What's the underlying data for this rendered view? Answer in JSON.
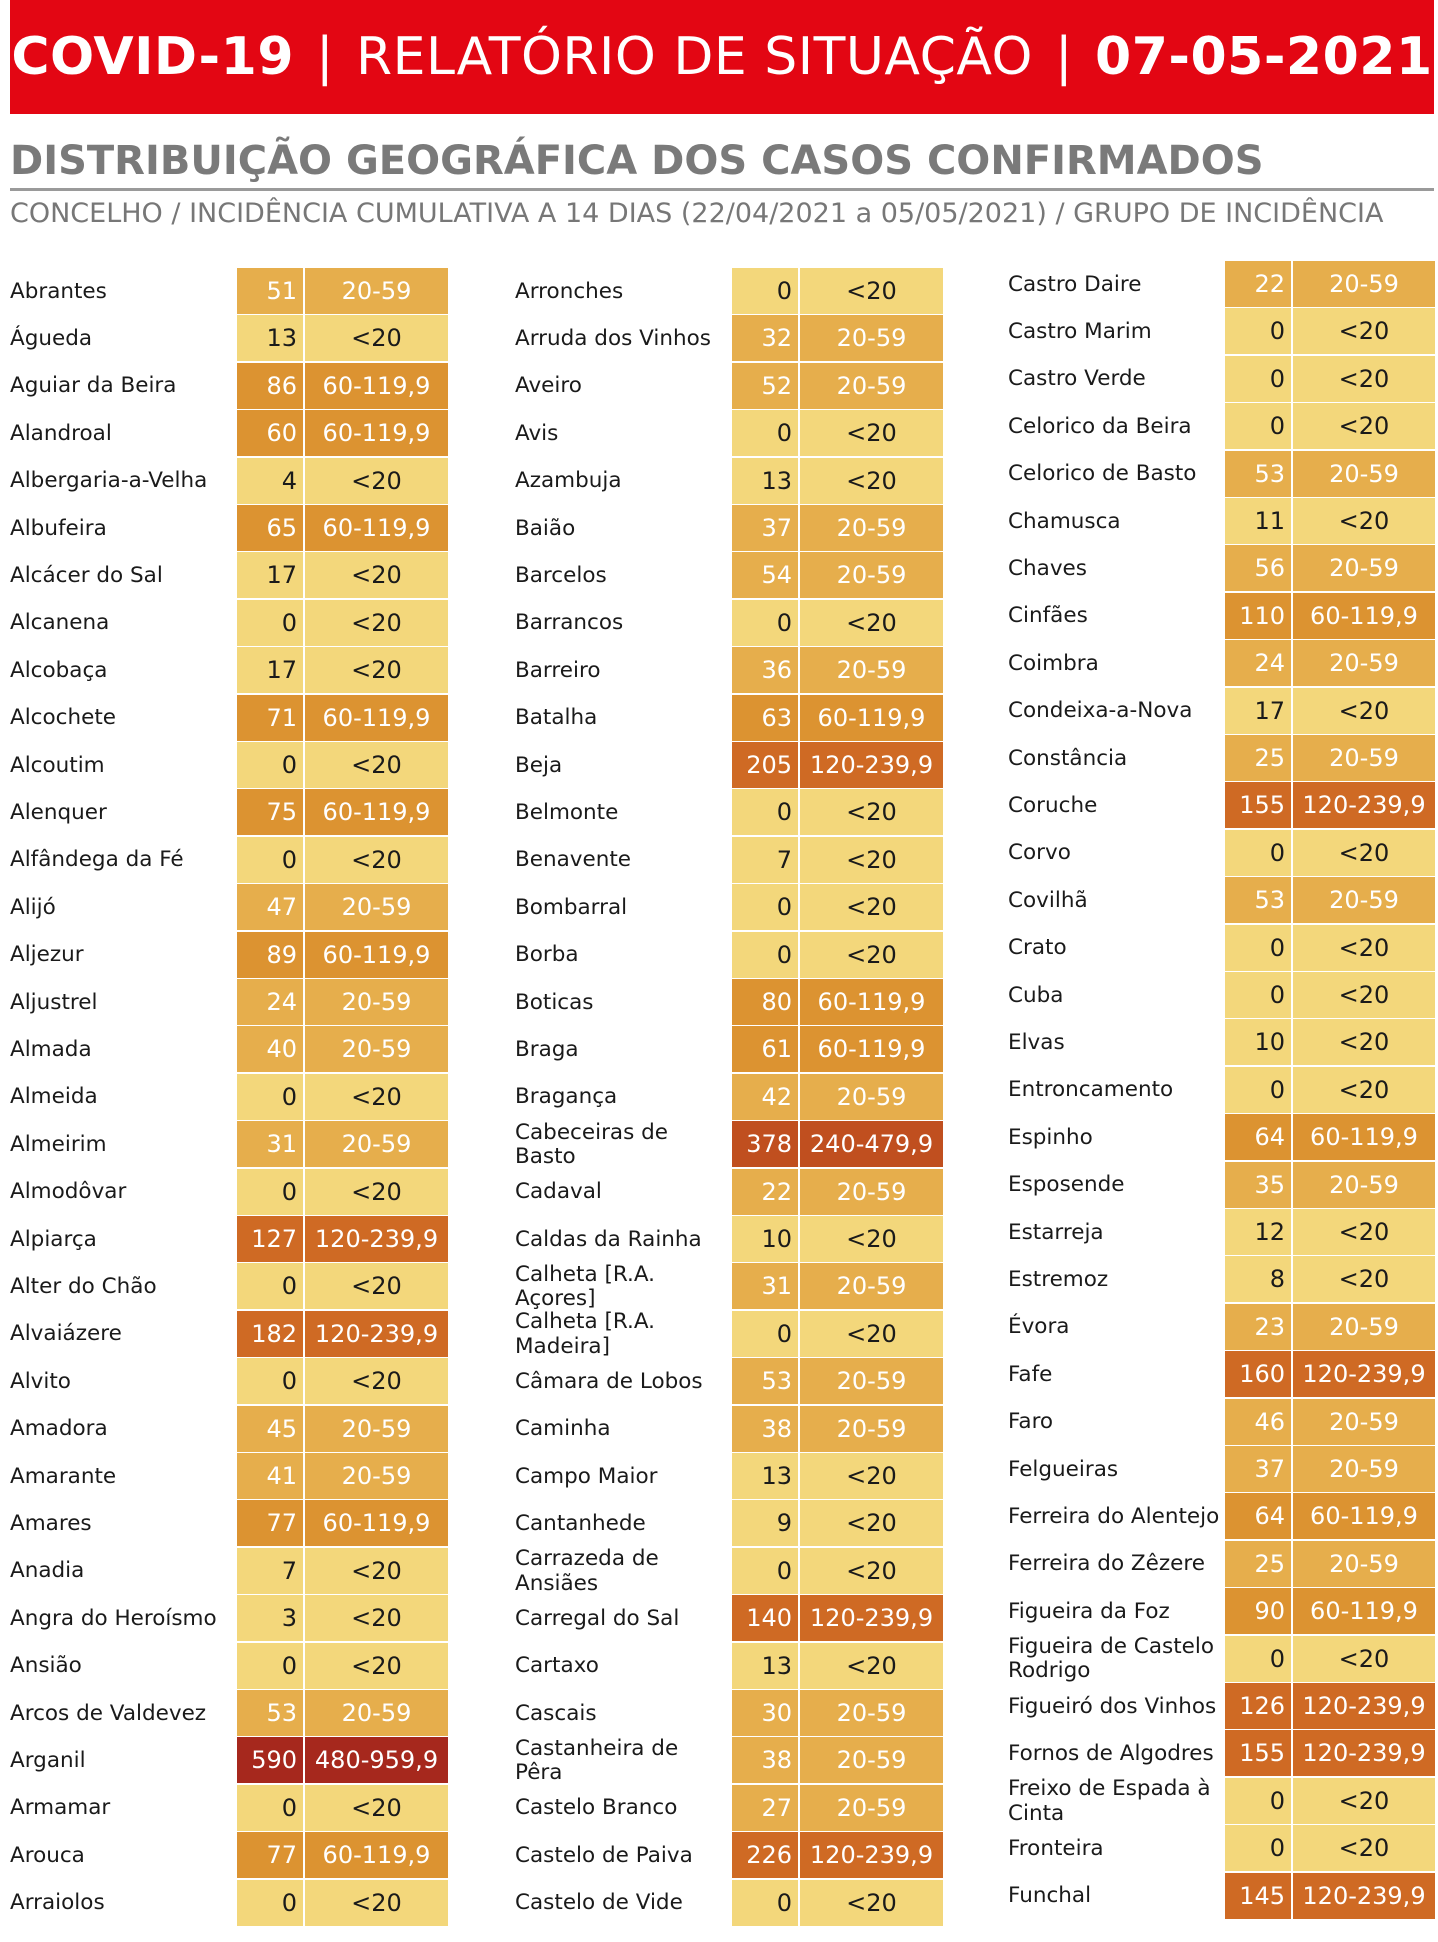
{
  "header": {
    "prefix": "COVID-19",
    "separator": "|",
    "middle": "RELATÓRIO DE SITUAÇÃO",
    "date": "07-05-2021"
  },
  "title": "DISTRIBUIÇÃO GEOGRÁFICA DOS CASOS CONFIRMADOS",
  "subtitle": "CONCELHO / INCIDÊNCIA CUMULATIVA A 14 DIAS (22/04/2021 a 05/05/2021) / GRUPO DE INCIDÊNCIA",
  "group_colors": {
    "<20": "#f3d77b",
    "20-59": "#e6ae4c",
    "60-119,9": "#dc9331",
    "120-239,9": "#cf6a24",
    "240-479,9": "#c04f1f",
    "480-959,9": "#a6281d"
  },
  "columns": [
    [
      {
        "name": "Abrantes",
        "value": "51",
        "group": "20-59"
      },
      {
        "name": "Águeda",
        "value": "13",
        "group": "<20"
      },
      {
        "name": "Aguiar da Beira",
        "value": "86",
        "group": "60-119,9"
      },
      {
        "name": "Alandroal",
        "value": "60",
        "group": "60-119,9"
      },
      {
        "name": "Albergaria-a-Velha",
        "value": "4",
        "group": "<20"
      },
      {
        "name": "Albufeira",
        "value": "65",
        "group": "60-119,9"
      },
      {
        "name": "Alcácer do Sal",
        "value": "17",
        "group": "<20"
      },
      {
        "name": "Alcanena",
        "value": "0",
        "group": "<20"
      },
      {
        "name": "Alcobaça",
        "value": "17",
        "group": "<20"
      },
      {
        "name": "Alcochete",
        "value": "71",
        "group": "60-119,9"
      },
      {
        "name": "Alcoutim",
        "value": "0",
        "group": "<20"
      },
      {
        "name": "Alenquer",
        "value": "75",
        "group": "60-119,9"
      },
      {
        "name": "Alfândega da Fé",
        "value": "0",
        "group": "<20"
      },
      {
        "name": "Alijó",
        "value": "47",
        "group": "20-59"
      },
      {
        "name": "Aljezur",
        "value": "89",
        "group": "60-119,9"
      },
      {
        "name": "Aljustrel",
        "value": "24",
        "group": "20-59"
      },
      {
        "name": "Almada",
        "value": "40",
        "group": "20-59"
      },
      {
        "name": "Almeida",
        "value": "0",
        "group": "<20"
      },
      {
        "name": "Almeirim",
        "value": "31",
        "group": "20-59"
      },
      {
        "name": "Almodôvar",
        "value": "0",
        "group": "<20"
      },
      {
        "name": "Alpiarça",
        "value": "127",
        "group": "120-239,9"
      },
      {
        "name": "Alter do Chão",
        "value": "0",
        "group": "<20"
      },
      {
        "name": "Alvaiázere",
        "value": "182",
        "group": "120-239,9"
      },
      {
        "name": "Alvito",
        "value": "0",
        "group": "<20"
      },
      {
        "name": "Amadora",
        "value": "45",
        "group": "20-59"
      },
      {
        "name": "Amarante",
        "value": "41",
        "group": "20-59"
      },
      {
        "name": "Amares",
        "value": "77",
        "group": "60-119,9"
      },
      {
        "name": "Anadia",
        "value": "7",
        "group": "<20"
      },
      {
        "name": "Angra do Heroísmo",
        "value": "3",
        "group": "<20"
      },
      {
        "name": "Ansião",
        "value": "0",
        "group": "<20"
      },
      {
        "name": "Arcos de Valdevez",
        "value": "53",
        "group": "20-59"
      },
      {
        "name": "Arganil",
        "value": "590",
        "group": "480-959,9"
      },
      {
        "name": "Armamar",
        "value": "0",
        "group": "<20"
      },
      {
        "name": "Arouca",
        "value": "77",
        "group": "60-119,9"
      },
      {
        "name": "Arraiolos",
        "value": "0",
        "group": "<20"
      }
    ],
    [
      {
        "name": "Arronches",
        "value": "0",
        "group": "<20"
      },
      {
        "name": "Arruda dos Vinhos",
        "value": "32",
        "group": "20-59"
      },
      {
        "name": "Aveiro",
        "value": "52",
        "group": "20-59"
      },
      {
        "name": "Avis",
        "value": "0",
        "group": "<20"
      },
      {
        "name": "Azambuja",
        "value": "13",
        "group": "<20"
      },
      {
        "name": "Baião",
        "value": "37",
        "group": "20-59"
      },
      {
        "name": "Barcelos",
        "value": "54",
        "group": "20-59"
      },
      {
        "name": "Barrancos",
        "value": "0",
        "group": "<20"
      },
      {
        "name": "Barreiro",
        "value": "36",
        "group": "20-59"
      },
      {
        "name": "Batalha",
        "value": "63",
        "group": "60-119,9"
      },
      {
        "name": "Beja",
        "value": "205",
        "group": "120-239,9"
      },
      {
        "name": "Belmonte",
        "value": "0",
        "group": "<20"
      },
      {
        "name": "Benavente",
        "value": "7",
        "group": "<20"
      },
      {
        "name": "Bombarral",
        "value": "0",
        "group": "<20"
      },
      {
        "name": "Borba",
        "value": "0",
        "group": "<20"
      },
      {
        "name": "Boticas",
        "value": "80",
        "group": "60-119,9"
      },
      {
        "name": "Braga",
        "value": "61",
        "group": "60-119,9"
      },
      {
        "name": "Bragança",
        "value": "42",
        "group": "20-59"
      },
      {
        "name": "Cabeceiras de Basto",
        "value": "378",
        "group": "240-479,9"
      },
      {
        "name": "Cadaval",
        "value": "22",
        "group": "20-59"
      },
      {
        "name": "Caldas da Rainha",
        "value": "10",
        "group": "<20"
      },
      {
        "name": "Calheta [R.A. Açores]",
        "value": "31",
        "group": "20-59"
      },
      {
        "name": "Calheta [R.A. Madeira]",
        "value": "0",
        "group": "<20"
      },
      {
        "name": "Câmara de Lobos",
        "value": "53",
        "group": "20-59"
      },
      {
        "name": "Caminha",
        "value": "38",
        "group": "20-59"
      },
      {
        "name": "Campo Maior",
        "value": "13",
        "group": "<20"
      },
      {
        "name": "Cantanhede",
        "value": "9",
        "group": "<20"
      },
      {
        "name": "Carrazeda de Ansiães",
        "value": "0",
        "group": "<20"
      },
      {
        "name": "Carregal do Sal",
        "value": "140",
        "group": "120-239,9"
      },
      {
        "name": "Cartaxo",
        "value": "13",
        "group": "<20"
      },
      {
        "name": "Cascais",
        "value": "30",
        "group": "20-59"
      },
      {
        "name": "Castanheira de Pêra",
        "value": "38",
        "group": "20-59"
      },
      {
        "name": "Castelo Branco",
        "value": "27",
        "group": "20-59"
      },
      {
        "name": "Castelo de Paiva",
        "value": "226",
        "group": "120-239,9"
      },
      {
        "name": "Castelo de Vide",
        "value": "0",
        "group": "<20"
      }
    ],
    [
      {
        "name": "Castro Daire",
        "value": "22",
        "group": "20-59"
      },
      {
        "name": "Castro Marim",
        "value": "0",
        "group": "<20"
      },
      {
        "name": "Castro Verde",
        "value": "0",
        "group": "<20"
      },
      {
        "name": "Celorico da Beira",
        "value": "0",
        "group": "<20"
      },
      {
        "name": "Celorico de Basto",
        "value": "53",
        "group": "20-59"
      },
      {
        "name": "Chamusca",
        "value": "11",
        "group": "<20"
      },
      {
        "name": "Chaves",
        "value": "56",
        "group": "20-59"
      },
      {
        "name": "Cinfães",
        "value": "110",
        "group": "60-119,9"
      },
      {
        "name": "Coimbra",
        "value": "24",
        "group": "20-59"
      },
      {
        "name": "Condeixa-a-Nova",
        "value": "17",
        "group": "<20"
      },
      {
        "name": "Constância",
        "value": "25",
        "group": "20-59"
      },
      {
        "name": "Coruche",
        "value": "155",
        "group": "120-239,9"
      },
      {
        "name": "Corvo",
        "value": "0",
        "group": "<20"
      },
      {
        "name": "Covilhã",
        "value": "53",
        "group": "20-59"
      },
      {
        "name": "Crato",
        "value": "0",
        "group": "<20"
      },
      {
        "name": "Cuba",
        "value": "0",
        "group": "<20"
      },
      {
        "name": "Elvas",
        "value": "10",
        "group": "<20"
      },
      {
        "name": "Entroncamento",
        "value": "0",
        "group": "<20"
      },
      {
        "name": "Espinho",
        "value": "64",
        "group": "60-119,9"
      },
      {
        "name": "Esposende",
        "value": "35",
        "group": "20-59"
      },
      {
        "name": "Estarreja",
        "value": "12",
        "group": "<20"
      },
      {
        "name": "Estremoz",
        "value": "8",
        "group": "<20"
      },
      {
        "name": "Évora",
        "value": "23",
        "group": "20-59"
      },
      {
        "name": "Fafe",
        "value": "160",
        "group": "120-239,9"
      },
      {
        "name": "Faro",
        "value": "46",
        "group": "20-59"
      },
      {
        "name": "Felgueiras",
        "value": "37",
        "group": "20-59"
      },
      {
        "name": "Ferreira do Alentejo",
        "value": "64",
        "group": "60-119,9"
      },
      {
        "name": "Ferreira do Zêzere",
        "value": "25",
        "group": "20-59"
      },
      {
        "name": "Figueira da Foz",
        "value": "90",
        "group": "60-119,9"
      },
      {
        "name": "Figueira de Castelo Rodrigo",
        "value": "0",
        "group": "<20"
      },
      {
        "name": "Figueiró dos Vinhos",
        "value": "126",
        "group": "120-239,9"
      },
      {
        "name": "Fornos de Algodres",
        "value": "155",
        "group": "120-239,9"
      },
      {
        "name": "Freixo de Espada à Cinta",
        "value": "0",
        "group": "<20"
      },
      {
        "name": "Fronteira",
        "value": "0",
        "group": "<20"
      },
      {
        "name": "Funchal",
        "value": "145",
        "group": "120-239,9"
      }
    ]
  ]
}
